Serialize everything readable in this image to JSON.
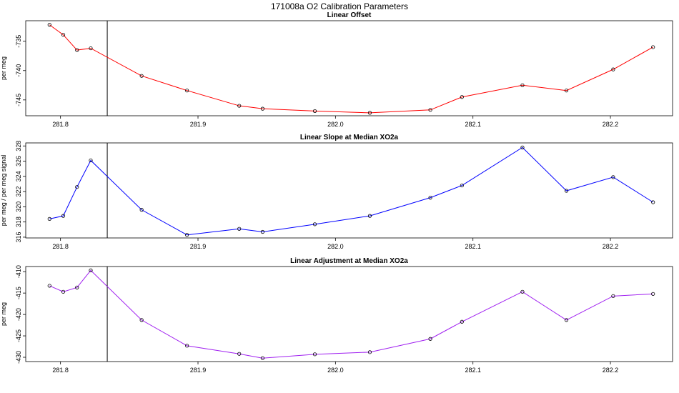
{
  "title": "171008a   O2 Calibration Parameters",
  "chart_data": [
    {
      "type": "line",
      "title": "Linear Offset",
      "y_label": "per meg",
      "color": "#ff0000",
      "x": [
        281.792,
        281.802,
        281.812,
        281.822,
        281.859,
        281.892,
        281.93,
        281.947,
        281.985,
        282.025,
        282.069,
        282.092,
        282.136,
        282.168,
        282.202,
        282.231
      ],
      "values": [
        -732.2,
        -733.9,
        -736.5,
        -736.2,
        -740.9,
        -743.4,
        -746.0,
        -746.5,
        -746.9,
        -747.2,
        -746.7,
        -744.5,
        -742.5,
        -743.4,
        -739.8,
        -736.0
      ],
      "vline": 281.834,
      "xlim": [
        281.7747,
        282.2452
      ],
      "xticks": [
        281.8,
        281.9,
        {
          "value": 282,
          "label": "282.0"
        },
        282.1,
        282.2
      ],
      "ylim": [
        -747.7,
        -731.5
      ],
      "yticks": [
        -735,
        -740,
        -745
      ]
    },
    {
      "type": "line",
      "title": "Linear Slope at Median XO2a",
      "y_label": "per meg / per meg signal",
      "color": "#0000ff",
      "x": [
        281.792,
        281.802,
        281.812,
        281.822,
        281.859,
        281.892,
        281.93,
        281.947,
        281.985,
        282.025,
        282.069,
        282.092,
        282.136,
        282.168,
        282.202,
        282.231
      ],
      "values": [
        318.4,
        318.8,
        322.6,
        326.1,
        319.6,
        316.3,
        317.1,
        316.7,
        317.7,
        318.8,
        321.2,
        322.8,
        327.8,
        322.1,
        323.9,
        320.6
      ],
      "vline": 281.834,
      "xlim": [
        281.7747,
        282.2452
      ],
      "xticks": [
        281.8,
        281.9,
        {
          "value": 282,
          "label": "282.0"
        },
        282.1,
        282.2
      ],
      "ylim": [
        315.9,
        328.4
      ],
      "yticks": [
        316,
        318,
        320,
        322,
        324,
        326,
        328
      ]
    },
    {
      "type": "line",
      "title": "Linear Adjustment at Median XO2a",
      "y_label": "per meg",
      "color": "#a020f0",
      "x": [
        281.792,
        281.802,
        281.812,
        281.822,
        281.859,
        281.892,
        281.93,
        281.947,
        281.985,
        282.025,
        282.069,
        282.092,
        282.136,
        282.168,
        282.202,
        282.231
      ],
      "values": [
        -413.3,
        -414.7,
        -413.7,
        -409.7,
        -421.3,
        -427.3,
        -429.2,
        -430.2,
        -429.3,
        -428.8,
        -425.7,
        -421.7,
        -414.7,
        -421.3,
        -415.7,
        -415.2
      ],
      "vline": 281.834,
      "xlim": [
        281.7747,
        282.2452
      ],
      "xticks": [
        281.8,
        281.9,
        {
          "value": 282,
          "label": "282.0"
        },
        282.1,
        282.2
      ],
      "ylim": [
        -431,
        -408.8
      ],
      "yticks": [
        -410,
        -415,
        -420,
        -425,
        -430
      ]
    }
  ]
}
